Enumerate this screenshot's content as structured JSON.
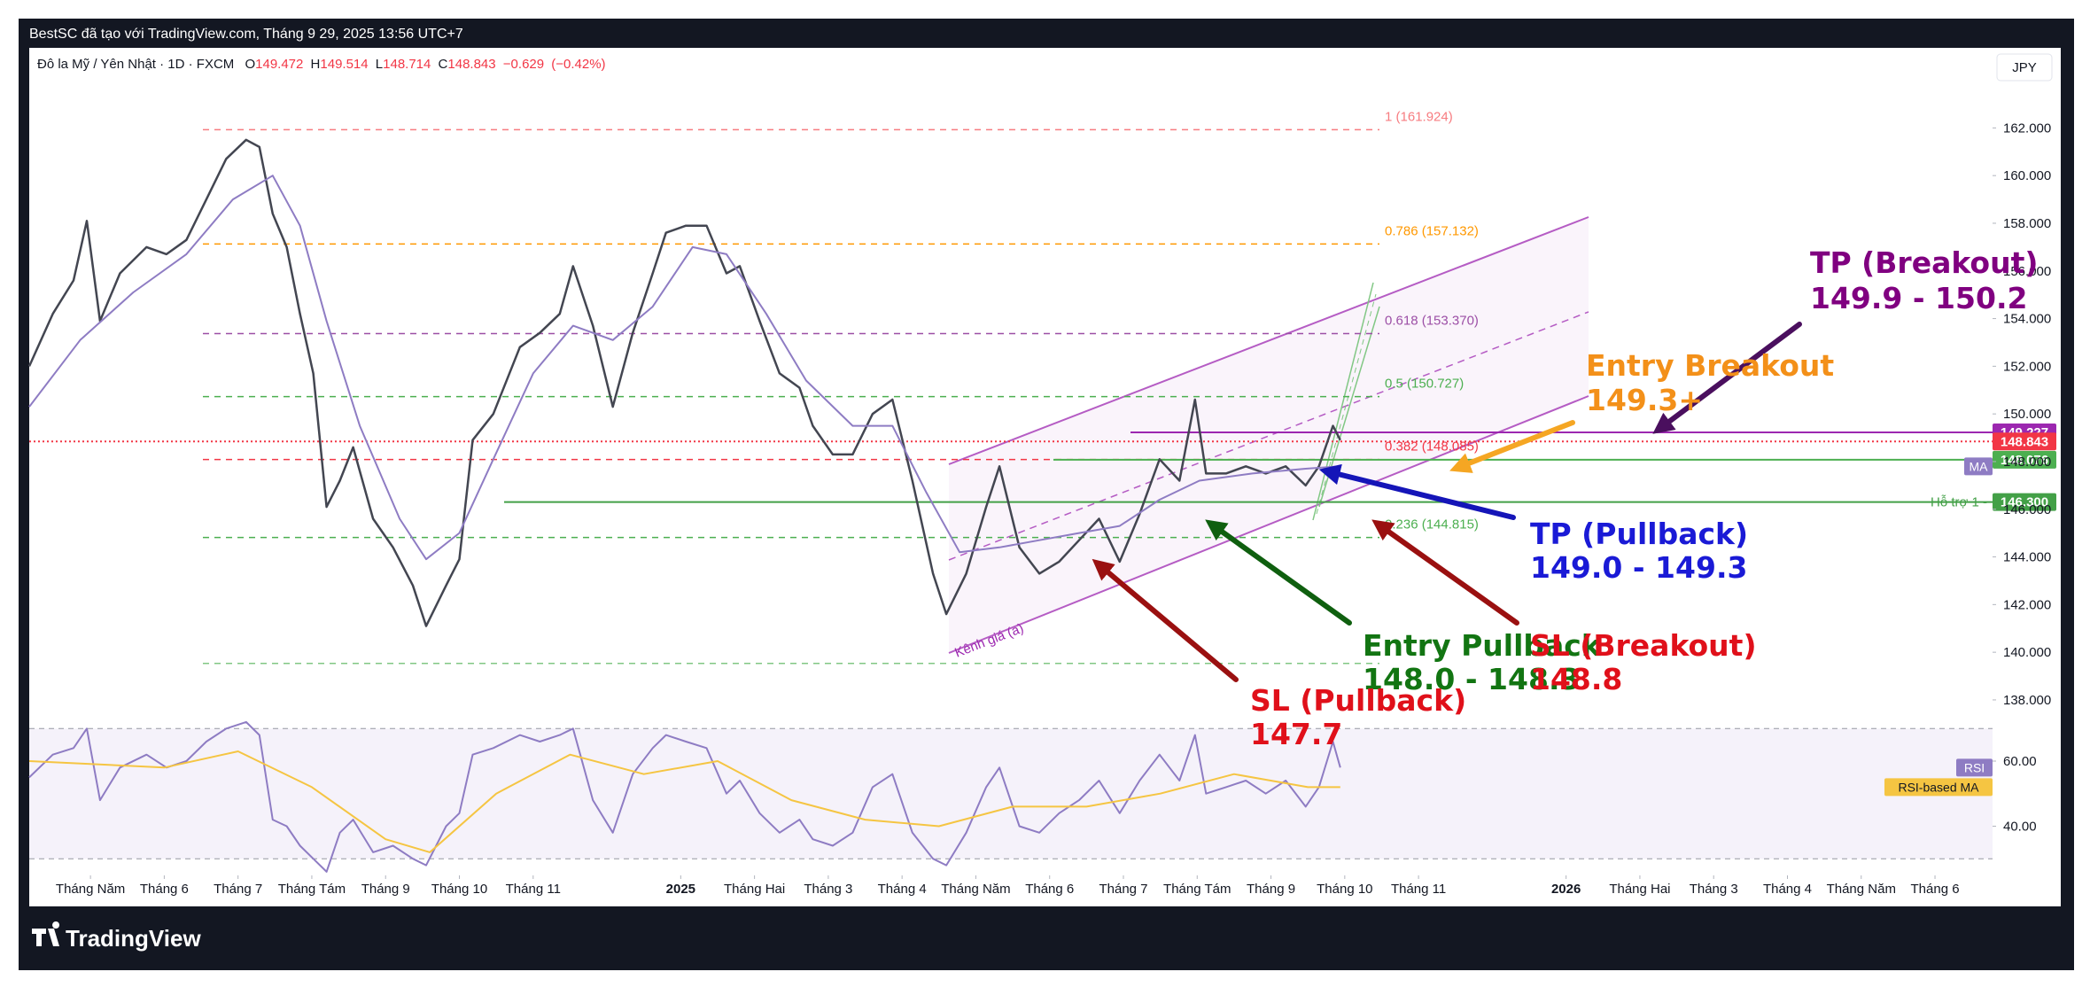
{
  "header": {
    "text": "BestSC đã tạo với TradingView.com, Tháng 9 29, 2025 13:56 UTC+7"
  },
  "legend": {
    "symbol": "Đô la Mỹ / Yên Nhật · 1D · FXCM",
    "ohlc": [
      {
        "letter": "O",
        "value": 149.472
      },
      {
        "letter": "H",
        "value": 149.514
      },
      {
        "letter": "L",
        "value": 148.714
      },
      {
        "letter": "C",
        "value": 148.843
      }
    ],
    "change": {
      "value": -0.629,
      "label": "−0.629"
    },
    "change_pct": {
      "value": -0.42,
      "label": "(−0.42%)"
    }
  },
  "currency": "JPY",
  "footer": {
    "brand": "TradingView"
  },
  "chart_data": [
    {
      "type": "line",
      "xlim": [
        -0.83,
        25.78
      ],
      "xticks": [
        {
          "value": 0,
          "label": "Tháng Năm"
        },
        {
          "value": 1,
          "label": "Tháng 6"
        },
        {
          "value": 2,
          "label": "Tháng 7"
        },
        {
          "value": 3,
          "label": "Tháng Tám"
        },
        {
          "value": 4,
          "label": "Tháng 9"
        },
        {
          "value": 5,
          "label": "Tháng 10"
        },
        {
          "value": 6,
          "label": "Tháng 11"
        },
        {
          "value": 8,
          "label": "2025"
        },
        {
          "value": 9,
          "label": "Tháng Hai"
        },
        {
          "value": 10,
          "label": "Tháng 3"
        },
        {
          "value": 11,
          "label": "Tháng 4"
        },
        {
          "value": 12,
          "label": "Tháng Năm"
        },
        {
          "value": 13,
          "label": "Tháng 6"
        },
        {
          "value": 14,
          "label": "Tháng 7"
        },
        {
          "value": 15,
          "label": "Tháng Tám"
        },
        {
          "value": 16,
          "label": "Tháng 9"
        },
        {
          "value": 17,
          "label": "Tháng 10"
        },
        {
          "value": 18,
          "label": "Tháng 11"
        },
        {
          "value": 20,
          "label": "2026"
        },
        {
          "value": 21,
          "label": "Tháng Hai"
        },
        {
          "value": 22,
          "label": "Tháng 3"
        },
        {
          "value": 23,
          "label": "Tháng 4"
        },
        {
          "value": 24,
          "label": "Tháng Năm"
        },
        {
          "value": 25,
          "label": "Tháng 6"
        }
      ],
      "ylim": [
        137.44,
        165.36
      ],
      "yticks": [
        {
          "value": 138,
          "label": "138.000"
        },
        {
          "value": 140,
          "label": "140.000"
        },
        {
          "value": 142,
          "label": "142.000"
        },
        {
          "value": 144,
          "label": "144.000"
        },
        {
          "value": 146,
          "label": "146.000"
        },
        {
          "value": 148,
          "label": "148.000"
        },
        {
          "value": 150,
          "label": "150.000"
        },
        {
          "value": 152,
          "label": "152.000"
        },
        {
          "value": 154,
          "label": "154.000"
        },
        {
          "value": 156,
          "label": "156.000"
        },
        {
          "value": 158,
          "label": "158.000"
        },
        {
          "value": 160,
          "label": "160.000"
        },
        {
          "value": 162,
          "label": "162.000"
        }
      ],
      "grid": false,
      "series": [
        {
          "color": "#434651",
          "x": [
            -0.83,
            -0.51,
            -0.23,
            -0.05,
            0.13,
            0.4,
            0.76,
            1.03,
            1.3,
            1.57,
            1.84,
            2.11,
            2.29,
            2.47,
            2.66,
            2.84,
            3.02,
            3.2,
            3.38,
            3.56,
            3.83,
            4.1,
            4.37,
            4.55,
            4.82,
            5.0,
            5.18,
            5.46,
            5.82,
            6.09,
            6.36,
            6.54,
            6.81,
            7.08,
            7.35,
            7.62,
            7.8,
            8.07,
            8.35,
            8.62,
            8.8,
            9.07,
            9.34,
            9.61,
            9.79,
            10.06,
            10.33,
            10.6,
            10.87,
            11.14,
            11.42,
            11.6,
            11.87,
            12.14,
            12.32,
            12.59,
            12.86,
            13.13,
            13.4,
            13.67,
            13.95,
            14.22,
            14.49,
            14.76,
            14.97,
            15.12,
            15.39,
            15.66,
            15.93,
            16.2,
            16.47,
            16.65,
            16.84,
            16.94
          ],
          "values": [
            152.0,
            154.2,
            155.6,
            158.1,
            153.9,
            155.9,
            157.0,
            156.7,
            157.3,
            159.0,
            160.7,
            161.5,
            161.2,
            158.4,
            157.0,
            154.2,
            151.7,
            146.1,
            147.2,
            148.6,
            145.6,
            144.4,
            142.8,
            141.1,
            142.8,
            143.9,
            148.9,
            150.0,
            152.8,
            153.4,
            154.2,
            156.2,
            153.7,
            150.3,
            153.4,
            155.9,
            157.6,
            157.9,
            157.9,
            155.9,
            156.2,
            153.9,
            151.7,
            151.1,
            149.5,
            148.3,
            148.3,
            150.0,
            150.6,
            147.2,
            143.3,
            141.6,
            143.3,
            146.1,
            147.8,
            144.4,
            143.3,
            143.8,
            144.7,
            145.6,
            143.8,
            145.8,
            148.1,
            147.2,
            150.6,
            147.5,
            147.5,
            147.8,
            147.5,
            147.8,
            147.0,
            147.8,
            149.5,
            148.9
          ]
        },
        {
          "name": "MA",
          "color": "#8e7cc3",
          "x": [
            -0.83,
            -0.14,
            0.58,
            1.3,
            1.93,
            2.47,
            2.84,
            3.2,
            3.65,
            4.19,
            4.55,
            5.0,
            5.46,
            6.0,
            6.54,
            7.08,
            7.62,
            8.16,
            8.62,
            9.16,
            9.7,
            10.33,
            10.87,
            11.33,
            11.78,
            12.32,
            12.86,
            13.4,
            13.95,
            14.49,
            15.03,
            15.75,
            16.47,
            16.94
          ],
          "values": [
            150.3,
            153.1,
            155.1,
            156.7,
            159.0,
            160.0,
            157.9,
            153.9,
            149.5,
            145.6,
            143.9,
            145.0,
            148.1,
            151.7,
            153.7,
            153.1,
            154.5,
            157.0,
            156.7,
            154.2,
            151.4,
            149.5,
            149.5,
            146.7,
            144.2,
            144.4,
            144.7,
            145.0,
            145.3,
            146.4,
            147.2,
            147.5,
            147.7,
            147.8
          ]
        }
      ],
      "fib_levels": [
        {
          "label": "1 (161.924)",
          "value": 161.924,
          "color": "#f77c80"
        },
        {
          "label": "0.786 (157.132)",
          "value": 157.132,
          "color": "#ff9800"
        },
        {
          "label": "0.618 (153.370)",
          "value": 153.37,
          "color": "#9c4fa6"
        },
        {
          "label": "0.5 (150.727)",
          "value": 150.727,
          "color": "#4caf50"
        },
        {
          "label": "0.382 (148.085)",
          "value": 148.085,
          "color": "#f23645"
        },
        {
          "label": "0.236 (144.815)",
          "value": 144.815,
          "color": "#4caf50"
        },
        {
          "value": 139.53,
          "color": "#81c784"
        }
      ],
      "price_lines": [
        {
          "value": 149.227,
          "label": "149.227",
          "color": "#9c27b0"
        },
        {
          "value": 148.843,
          "label": "148.843",
          "color": "#f23645"
        },
        {
          "value": 148.076,
          "label": "148.076",
          "color": "#4caf50"
        },
        {
          "value": 146.3,
          "label": "146.300",
          "color": "#43a047",
          "name": "Hỗ trợ 1 -"
        }
      ],
      "channel_label": "Kênh giá (a)",
      "annotations": [
        {
          "lines": [
            "TP (Breakout)",
            "149.9 - 150.2"
          ],
          "color": "#800080"
        },
        {
          "lines": [
            "Entry Breakout",
            "149.3+"
          ],
          "color": "#f39019"
        },
        {
          "lines": [
            "TP (Pullback)",
            "149.0 - 149.3"
          ],
          "color": "#1a1ad6"
        },
        {
          "lines": [
            "Entry Pullback",
            "148.0 - 148.3"
          ],
          "color": "#127512"
        },
        {
          "lines": [
            "SL (Breakout)",
            "148.8"
          ],
          "color": "#e0101a"
        },
        {
          "lines": [
            "SL (Pullback)",
            "147.7"
          ],
          "color": "#e0101a"
        }
      ]
    },
    {
      "type": "line",
      "xlim": [
        -0.83,
        25.78
      ],
      "ylim": [
        25.7,
        74.7
      ],
      "yticks": [
        {
          "value": 40,
          "label": "40.00"
        },
        {
          "value": 60,
          "label": "60.00"
        }
      ],
      "band_levels": [
        30,
        70
      ],
      "series": [
        {
          "name": "RSI",
          "color": "#8e7cc3",
          "x": [
            -0.83,
            -0.51,
            -0.23,
            -0.05,
            0.13,
            0.4,
            0.76,
            1.03,
            1.3,
            1.57,
            1.84,
            2.11,
            2.29,
            2.47,
            2.66,
            2.84,
            3.02,
            3.2,
            3.38,
            3.56,
            3.83,
            4.1,
            4.37,
            4.55,
            4.82,
            5.0,
            5.18,
            5.46,
            5.82,
            6.09,
            6.36,
            6.54,
            6.81,
            7.08,
            7.35,
            7.62,
            7.8,
            8.07,
            8.35,
            8.62,
            8.8,
            9.07,
            9.34,
            9.61,
            9.79,
            10.06,
            10.33,
            10.6,
            10.87,
            11.14,
            11.42,
            11.6,
            11.87,
            12.14,
            12.32,
            12.59,
            12.86,
            13.13,
            13.4,
            13.67,
            13.95,
            14.22,
            14.49,
            14.76,
            14.97,
            15.12,
            15.39,
            15.66,
            15.93,
            16.2,
            16.47,
            16.65,
            16.84,
            16.94
          ],
          "values": [
            55,
            62,
            64,
            70,
            48,
            58,
            62,
            58,
            60,
            66,
            70,
            72,
            68,
            42,
            40,
            34,
            30,
            26,
            38,
            42,
            32,
            34,
            30,
            28,
            40,
            44,
            62,
            64,
            68,
            66,
            68,
            70,
            48,
            38,
            56,
            64,
            68,
            66,
            64,
            50,
            54,
            44,
            38,
            42,
            36,
            34,
            38,
            52,
            56,
            38,
            30,
            28,
            38,
            52,
            58,
            40,
            38,
            44,
            48,
            54,
            44,
            54,
            62,
            54,
            68,
            50,
            52,
            54,
            50,
            54,
            46,
            52,
            66,
            58
          ]
        },
        {
          "name": "RSI-based MA",
          "color": "#f5c542",
          "x": [
            -0.83,
            1,
            2,
            3,
            4,
            4.6,
            5.5,
            6.5,
            7.5,
            8.5,
            9.5,
            10.5,
            11.5,
            12.5,
            13.5,
            14.5,
            15.5,
            16.5,
            16.94
          ],
          "values": [
            60,
            58,
            63,
            52,
            36,
            32,
            50,
            62,
            56,
            60,
            48,
            42,
            40,
            46,
            46,
            50,
            56,
            52,
            52
          ]
        }
      ]
    }
  ]
}
